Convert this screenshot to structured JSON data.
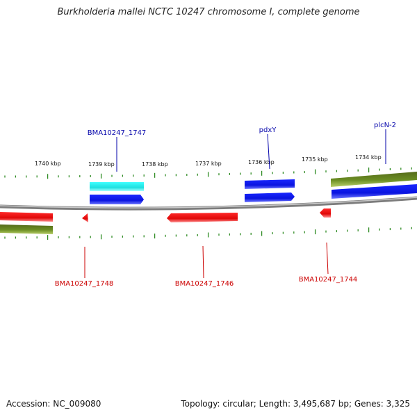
{
  "title": "Burkholderia mallei NCTC 10247 chromosome I, complete genome",
  "footer": {
    "accession": "Accession: NC_009080",
    "summary": "Topology: circular; Length: 3,495,687 bp; Genes: 3,325"
  },
  "colors": {
    "backbone": "#8a8a8a",
    "tick": "#2e8b22",
    "forward_cds": "#0a14e6",
    "reverse_cds": "#e00808",
    "highlight": "#22e6e6",
    "operon": "#6b8e23",
    "label_forward": "#0000aa",
    "label_reverse": "#cc0000"
  },
  "scale": {
    "labels": [
      "1740 kbp",
      "1739 kbp",
      "1738 kbp",
      "1737 kbp",
      "1736 kbp",
      "1735 kbp",
      "1734 kbp"
    ]
  },
  "genes_top": [
    {
      "name": "BMA10247_1747"
    },
    {
      "name": "pdxY"
    },
    {
      "name": "plcN-2"
    }
  ],
  "genes_bottom": [
    {
      "name": "BMA10247_1748"
    },
    {
      "name": "BMA10247_1746"
    },
    {
      "name": "BMA10247_1744"
    }
  ]
}
